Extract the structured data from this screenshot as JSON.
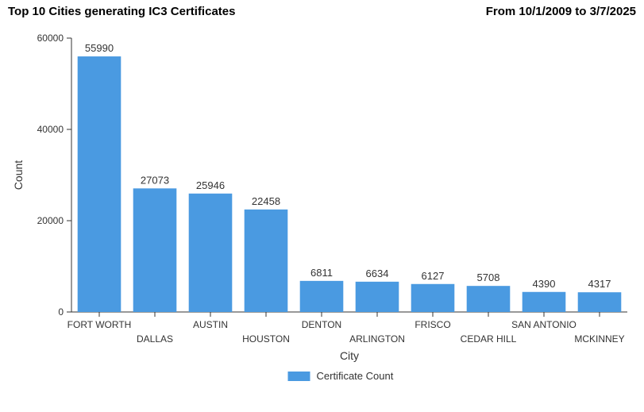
{
  "header": {
    "title_left": "Top 10 Cities generating IC3 Certificates",
    "title_right": "From 10/1/2009 to 3/7/2025"
  },
  "chart": {
    "type": "bar",
    "x_axis_title": "City",
    "y_axis_title": "Count",
    "ylim": [
      0,
      60000
    ],
    "ytick_step": 20000,
    "yticks": [
      0,
      20000,
      40000,
      60000
    ],
    "categories": [
      "FORT WORTH",
      "DALLAS",
      "AUSTIN",
      "HOUSTON",
      "DENTON",
      "ARLINGTON",
      "FRISCO",
      "CEDAR HILL",
      "SAN ANTONIO",
      "MCKINNEY"
    ],
    "values": [
      55990,
      27073,
      25946,
      22458,
      6811,
      6634,
      6127,
      5708,
      4390,
      4317
    ],
    "bar_color": "#4a9ae1",
    "background_color": "#ffffff",
    "axis_line_color": "#333333",
    "tick_label_fontsize": 12,
    "value_label_fontsize": 13,
    "axis_title_fontsize": 14,
    "bar_width_ratio": 0.78,
    "legend": {
      "label": "Certificate Count",
      "swatch_color": "#4a9ae1"
    },
    "x_label_stagger": true
  }
}
